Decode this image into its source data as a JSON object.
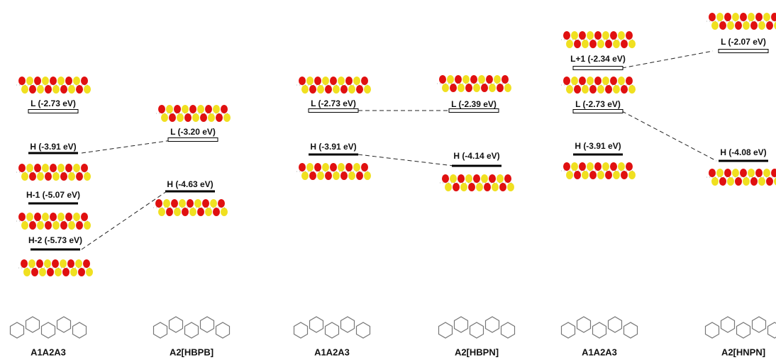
{
  "panels": [
    {
      "left": {
        "molecule": "A1A2A3",
        "levels": [
          "L (-2.73 eV)",
          "H (-3.91 eV)",
          "H-1 (-5.07 eV)",
          "H-2 (-5.73 eV)"
        ]
      },
      "right": {
        "molecule": "A2[HBPB]",
        "levels": [
          "L (-3.20 eV)",
          "H (-4.63 eV)"
        ]
      }
    },
    {
      "left": {
        "molecule": "A1A2A3",
        "levels": [
          "L (-2.73 eV)",
          "H (-3.91 eV)"
        ]
      },
      "right": {
        "molecule": "A2[HBPN]",
        "levels": [
          "L (-2.39 eV)",
          "H (-4.14 eV)"
        ]
      }
    },
    {
      "left": {
        "molecule": "A1A2A3",
        "levels": [
          "L+1 (-2.34 eV)",
          "L (-2.73 eV)",
          "H (-3.91 eV)"
        ]
      },
      "right": {
        "molecule": "A2[HNPN]",
        "levels": [
          "L (-2.07 eV)",
          "H (-4.08 eV)"
        ]
      }
    }
  ]
}
